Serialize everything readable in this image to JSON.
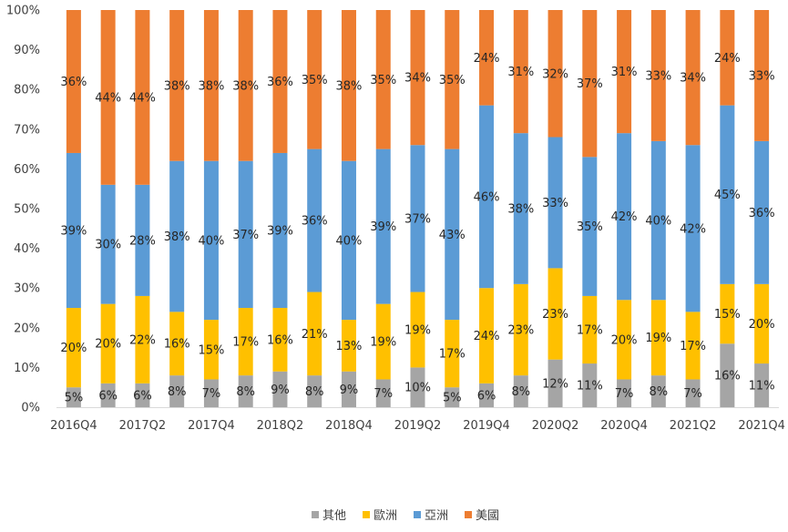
{
  "chart_data": {
    "type": "bar",
    "stacked": true,
    "percent_stacked": true,
    "title": "",
    "xlabel": "",
    "ylabel": "",
    "ylim": [
      0,
      100
    ],
    "y_ticks": [
      "0%",
      "10%",
      "20%",
      "30%",
      "40%",
      "50%",
      "60%",
      "70%",
      "80%",
      "90%",
      "100%"
    ],
    "grid": false,
    "legend_position": "bottom",
    "categories": [
      "2016Q4",
      "2017Q1",
      "2017Q2",
      "2017Q3",
      "2017Q4",
      "2018Q1",
      "2018Q2",
      "2018Q3",
      "2018Q4",
      "2019Q1",
      "2019Q2",
      "2019Q3",
      "2019Q4",
      "2020Q1",
      "2020Q2",
      "2020Q3",
      "2020Q4",
      "2021Q1",
      "2021Q2",
      "2021Q3",
      "2021Q4"
    ],
    "x_tick_labels": [
      "2016Q4",
      "",
      "2017Q2",
      "",
      "2017Q4",
      "",
      "2018Q2",
      "",
      "2018Q4",
      "",
      "2019Q2",
      "",
      "2019Q4",
      "",
      "2020Q2",
      "",
      "2020Q4",
      "",
      "2021Q2",
      "",
      "2021Q4"
    ],
    "series": [
      {
        "name": "其他",
        "color": "#A5A5A5",
        "values": [
          5,
          6,
          6,
          8,
          7,
          8,
          9,
          8,
          9,
          7,
          10,
          5,
          6,
          8,
          12,
          11,
          7,
          8,
          7,
          16,
          11
        ]
      },
      {
        "name": "歐洲",
        "color": "#FFC000",
        "values": [
          20,
          20,
          22,
          16,
          15,
          17,
          16,
          21,
          13,
          19,
          19,
          17,
          24,
          23,
          23,
          17,
          20,
          19,
          17,
          15,
          20
        ]
      },
      {
        "name": "亞洲",
        "color": "#5B9BD5",
        "values": [
          39,
          30,
          28,
          38,
          40,
          37,
          39,
          36,
          40,
          39,
          37,
          43,
          46,
          38,
          33,
          35,
          42,
          40,
          42,
          45,
          36
        ]
      },
      {
        "name": "美國",
        "color": "#ED7D31",
        "values": [
          36,
          44,
          44,
          38,
          38,
          38,
          36,
          35,
          38,
          35,
          34,
          35,
          24,
          31,
          32,
          37,
          31,
          33,
          34,
          24,
          33
        ]
      }
    ],
    "value_suffix": "%"
  }
}
